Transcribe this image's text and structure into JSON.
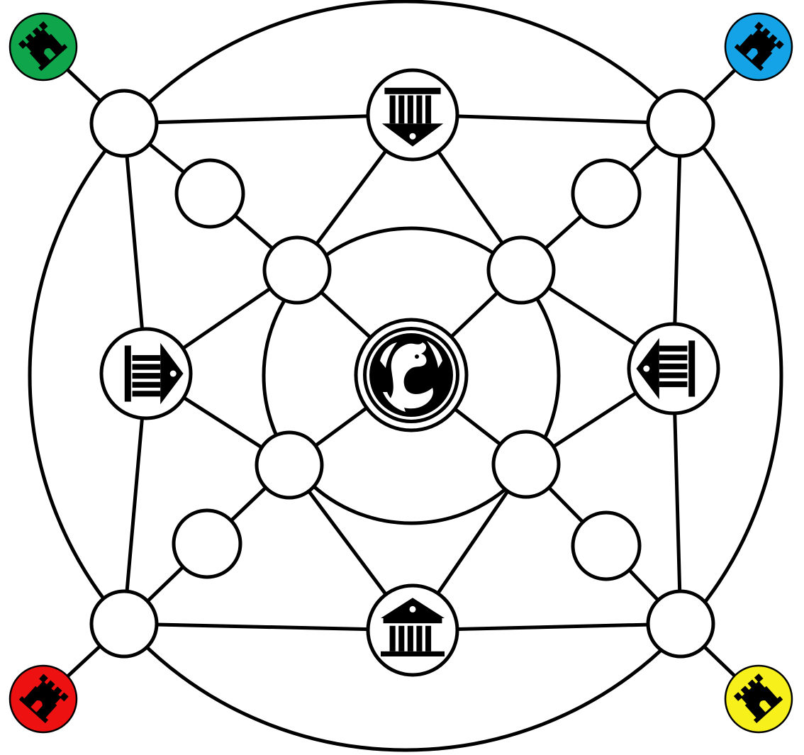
{
  "players": [
    {
      "id": "green",
      "color": "#0fa64b",
      "icon": "castle-tower-icon"
    },
    {
      "id": "blue",
      "color": "#14a3e6",
      "icon": "castle-tower-icon"
    },
    {
      "id": "red",
      "color": "#ee1111",
      "icon": "castle-tower-icon"
    },
    {
      "id": "yellow",
      "color": "#f7f01b",
      "icon": "castle-tower-icon"
    }
  ],
  "temples": [
    {
      "id": "north",
      "icon": "temple-icon",
      "marker": "arrow-down"
    },
    {
      "id": "west",
      "icon": "temple-icon",
      "marker": "arrow-right"
    },
    {
      "id": "east",
      "icon": "temple-icon",
      "marker": "arrow-left"
    },
    {
      "id": "south",
      "icon": "temple-icon",
      "marker": "none"
    }
  ],
  "center": {
    "icon": "dragon-icon"
  },
  "board": {
    "background": "#ffffff",
    "line_color": "#000000"
  }
}
